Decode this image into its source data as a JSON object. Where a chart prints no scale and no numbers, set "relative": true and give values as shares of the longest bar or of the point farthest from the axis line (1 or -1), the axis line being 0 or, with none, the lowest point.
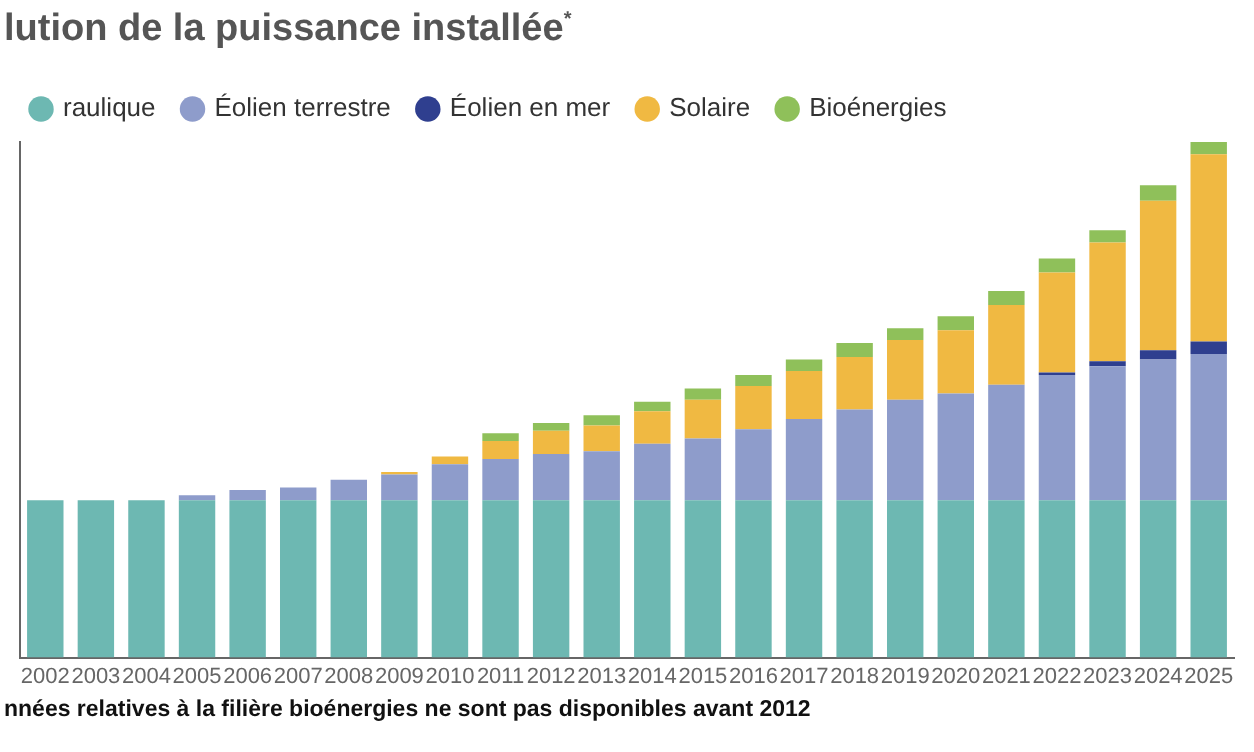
{
  "chart_data": {
    "type": "bar",
    "title": "lution de la puissance installée$^{*}$",
    "stacked": true,
    "relative": true,
    "legend": "top left",
    "categories": [
      "2002",
      "2003",
      "2004",
      "2005",
      "2006",
      "2007",
      "2008",
      "2009",
      "2010",
      "2011",
      "2012",
      "2013",
      "2014",
      "2015",
      "2016",
      "2017",
      "2018",
      "2019",
      "2020",
      "2021",
      "2022",
      "2023",
      "2024",
      "2025"
    ],
    "series": [
      {
        "name": "raulique",
        "color": "#6db8b2",
        "values": [
          0.305,
          0.305,
          0.305,
          0.305,
          0.305,
          0.305,
          0.305,
          0.305,
          0.305,
          0.305,
          0.305,
          0.305,
          0.305,
          0.305,
          0.305,
          0.305,
          0.305,
          0.305,
          0.305,
          0.305,
          0.305,
          0.305,
          0.305,
          0.305
        ]
      },
      {
        "name": "Éolien terrestre",
        "color": "#8e9ccb",
        "values": [
          0,
          0,
          0,
          0.01,
          0.02,
          0.025,
          0.04,
          0.05,
          0.07,
          0.08,
          0.09,
          0.095,
          0.11,
          0.12,
          0.138,
          0.158,
          0.176,
          0.195,
          0.207,
          0.224,
          0.243,
          0.26,
          0.273,
          0.284
        ]
      },
      {
        "name": "Éolien en mer",
        "color": "#2f3f8f",
        "values": [
          0,
          0,
          0,
          0,
          0,
          0,
          0,
          0,
          0,
          0,
          0,
          0,
          0,
          0,
          0,
          0,
          0,
          0,
          0,
          0,
          0.005,
          0.01,
          0.018,
          0.024
        ]
      },
      {
        "name": "Solaire",
        "color": "#f0b942",
        "values": [
          0,
          0,
          0,
          0,
          0,
          0,
          0,
          0.005,
          0.015,
          0.035,
          0.045,
          0.05,
          0.063,
          0.075,
          0.084,
          0.093,
          0.102,
          0.116,
          0.123,
          0.155,
          0.194,
          0.23,
          0.29,
          0.363
        ]
      },
      {
        "name": "Bioénergies",
        "color": "#8fc05a",
        "values": [
          0,
          0,
          0,
          0,
          0,
          0,
          0,
          0,
          0,
          0.015,
          0.015,
          0.02,
          0.018,
          0.022,
          0.021,
          0.022,
          0.027,
          0.023,
          0.027,
          0.027,
          0.027,
          0.024,
          0.03,
          0.024
        ]
      }
    ],
    "annotations": [
      "nnées relatives à la filière bioénergies ne sont pas disponibles avant 2012"
    ]
  }
}
